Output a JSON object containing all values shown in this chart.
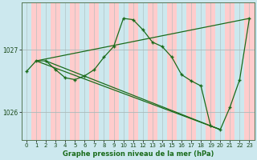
{
  "title": "Graphe pression niveau de la mer (hPa)",
  "bg_color": "#cce8ee",
  "plot_bg": "#cce8ee",
  "stripe_color": "#ffcccc",
  "line_color": "#1a6b1a",
  "xlim": [
    -0.5,
    23.5
  ],
  "ylim": [
    1025.55,
    1027.75
  ],
  "yticks": [
    1026,
    1027
  ],
  "xticks": [
    0,
    1,
    2,
    3,
    4,
    5,
    6,
    7,
    8,
    9,
    10,
    11,
    12,
    13,
    14,
    15,
    16,
    17,
    18,
    19,
    20,
    21,
    22,
    23
  ],
  "line1_x": [
    0,
    1,
    2,
    3,
    4,
    5,
    6,
    7,
    8,
    9,
    10,
    11,
    12,
    13,
    14,
    15,
    16,
    17,
    18,
    19,
    20,
    21,
    22,
    23
  ],
  "line1_y": [
    1026.65,
    1026.82,
    1026.82,
    1026.68,
    1026.55,
    1026.52,
    1026.58,
    1026.68,
    1026.88,
    1027.05,
    1027.5,
    1027.48,
    1027.32,
    1027.12,
    1027.05,
    1026.88,
    1026.6,
    1026.5,
    1026.42,
    1025.78,
    1025.72,
    1026.08,
    1026.52,
    1027.5
  ],
  "line2_x": [
    1,
    23
  ],
  "line2_y": [
    1026.82,
    1027.5
  ],
  "line3_x": [
    1,
    20
  ],
  "line3_y": [
    1026.82,
    1025.72
  ],
  "line4_x": [
    2,
    20
  ],
  "line4_y": [
    1026.82,
    1025.72
  ]
}
